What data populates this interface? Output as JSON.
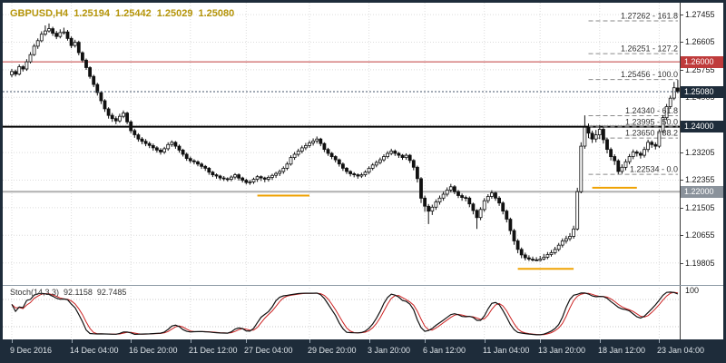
{
  "header": {
    "symbol_period": "GBPUSD,H4",
    "open": "1.25194",
    "high": "1.25442",
    "low": "1.25029",
    "close": "1.25080"
  },
  "colors": {
    "frame": "#1e2c3a",
    "badge_current": "#1e2c3a",
    "badge_red": "#bf3b3b",
    "badge_gray": "#8a929b",
    "orange_marker": "#efa202",
    "grid": "#dcdcdc",
    "fib_line": "#8a8a8a",
    "fib_text": "#333333",
    "candle": "#111111",
    "bull_fill": "#ffffff",
    "bear_fill": "#111111",
    "stoch_main": "#111111",
    "stoch_signal": "#cc2222",
    "quote_text": "#b5950a"
  },
  "indicator": {
    "label": "Stoch(14,3,3)",
    "value_main": "92.1158",
    "value_signal": "92.7485",
    "k_period": 14,
    "slowing": 3,
    "d_period": 3,
    "scale_max_label": "100",
    "levels": [
      20,
      80
    ]
  },
  "price_axis": {
    "ticks": [
      "1.27455",
      "1.26605",
      "1.25755",
      "1.24905",
      "1.24055",
      "1.23205",
      "1.22355",
      "1.21505",
      "1.20655",
      "1.19805"
    ],
    "badges": [
      {
        "text": "1.26000",
        "price": 1.26,
        "bg": "#bf3b3b",
        "name": "hline-1.26"
      },
      {
        "text": "1.25080",
        "price": 1.2508,
        "bg": "#1e2c3a",
        "name": "current-price"
      },
      {
        "text": "1.24000",
        "price": 1.24,
        "bg": "#1e2c3a",
        "name": "hline-1.24"
      },
      {
        "text": "1.22000",
        "price": 1.22,
        "bg": "#8a929b",
        "name": "hline-1.22"
      }
    ]
  },
  "time_axis": {
    "labels": [
      {
        "text": "9 Dec 2016",
        "idx": 0
      },
      {
        "text": "14 Dec 04:00",
        "idx": 16
      },
      {
        "text": "16 Dec 20:00",
        "idx": 32
      },
      {
        "text": "21 Dec 12:00",
        "idx": 48
      },
      {
        "text": "27 Dec 04:00",
        "idx": 63
      },
      {
        "text": "29 Dec 20:00",
        "idx": 80
      },
      {
        "text": "3 Jan 20:00",
        "idx": 96
      },
      {
        "text": "6 Jan 12:00",
        "idx": 111
      },
      {
        "text": "11 Jan 04:00",
        "idx": 127
      },
      {
        "text": "13 Jan 20:00",
        "idx": 142
      },
      {
        "text": "18 Jan 12:00",
        "idx": 158
      },
      {
        "text": "23 Jan 04:00",
        "idx": 174
      }
    ]
  },
  "chart_data": {
    "type": "candlestick",
    "symbol": "GBPUSD",
    "timeframe": "H4",
    "title": "GBPUSD,H4",
    "ohlc_current": {
      "open": 1.25194,
      "high": 1.25442,
      "low": 1.25029,
      "close": 1.2508
    },
    "y_range": [
      1.1932,
      1.2782
    ],
    "grid": true,
    "sr_lines": [
      {
        "price": 1.26,
        "color": "#bf3b3b",
        "width": 1
      },
      {
        "price": 1.24,
        "color": "#000000",
        "width": 2
      },
      {
        "price": 1.22,
        "color": "#b0b0b0",
        "width": 2
      }
    ],
    "fib": {
      "start_idx": 155,
      "levels": [
        {
          "price": 1.27262,
          "label": "1.27262 - 161.8"
        },
        {
          "price": 1.26251,
          "label": "1.26251 - 127.2"
        },
        {
          "price": 1.25456,
          "label": "1.25456 - 100.0"
        },
        {
          "price": 1.2434,
          "label": "1.24340 - 61.8"
        },
        {
          "price": 1.23995,
          "label": "1.23995 - 50.0"
        },
        {
          "price": 1.2365,
          "label": "1.23650 - 38.2"
        },
        {
          "price": 1.22534,
          "label": "1.22534 - 0.0"
        }
      ]
    },
    "support_markers": [
      {
        "price": 1.2188,
        "from": 66,
        "to": 80
      },
      {
        "price": 1.1962,
        "from": 136,
        "to": 151
      },
      {
        "price": 1.2212,
        "from": 156,
        "to": 168
      }
    ],
    "candles": [
      [
        1.256,
        1.2578,
        1.2552,
        1.257
      ],
      [
        1.257,
        1.2576,
        1.2555,
        1.2562
      ],
      [
        1.2562,
        1.2592,
        1.2558,
        1.2585
      ],
      [
        1.2585,
        1.259,
        1.257,
        1.2578
      ],
      [
        1.2578,
        1.2608,
        1.2572,
        1.26
      ],
      [
        1.26,
        1.263,
        1.2595,
        1.2622
      ],
      [
        1.2622,
        1.2655,
        1.2618,
        1.2648
      ],
      [
        1.2648,
        1.2672,
        1.264,
        1.2665
      ],
      [
        1.2665,
        1.2694,
        1.266,
        1.2685
      ],
      [
        1.2685,
        1.2712,
        1.268,
        1.2695
      ],
      [
        1.2695,
        1.2718,
        1.269,
        1.2702
      ],
      [
        1.2702,
        1.2708,
        1.268,
        1.2688
      ],
      [
        1.2688,
        1.2695,
        1.267,
        1.2678
      ],
      [
        1.2678,
        1.27,
        1.2672,
        1.269
      ],
      [
        1.269,
        1.2705,
        1.2684,
        1.2692
      ],
      [
        1.2692,
        1.2698,
        1.2665,
        1.2672
      ],
      [
        1.2672,
        1.2678,
        1.2642,
        1.265
      ],
      [
        1.265,
        1.2668,
        1.2644,
        1.266
      ],
      [
        1.266,
        1.2665,
        1.262,
        1.2628
      ],
      [
        1.2628,
        1.2632,
        1.2598,
        1.2605
      ],
      [
        1.2605,
        1.261,
        1.2575,
        1.2582
      ],
      [
        1.2582,
        1.2586,
        1.2548,
        1.2555
      ],
      [
        1.2555,
        1.256,
        1.2522,
        1.253
      ],
      [
        1.253,
        1.2535,
        1.2496,
        1.2505
      ],
      [
        1.2505,
        1.251,
        1.247,
        1.248
      ],
      [
        1.248,
        1.2485,
        1.2446,
        1.2455
      ],
      [
        1.2455,
        1.246,
        1.2425,
        1.2435
      ],
      [
        1.2435,
        1.2442,
        1.2415,
        1.2425
      ],
      [
        1.2425,
        1.2432,
        1.2408,
        1.2418
      ],
      [
        1.2418,
        1.244,
        1.2412,
        1.2432
      ],
      [
        1.2432,
        1.245,
        1.2426,
        1.2442
      ],
      [
        1.2442,
        1.2446,
        1.2408,
        1.2415
      ],
      [
        1.2415,
        1.242,
        1.238,
        1.2388
      ],
      [
        1.2388,
        1.2394,
        1.2366,
        1.2375
      ],
      [
        1.2375,
        1.238,
        1.2354,
        1.2362
      ],
      [
        1.2362,
        1.2368,
        1.2346,
        1.2355
      ],
      [
        1.2355,
        1.2362,
        1.234,
        1.2348
      ],
      [
        1.2348,
        1.2354,
        1.2334,
        1.2342
      ],
      [
        1.2342,
        1.2348,
        1.2326,
        1.2335
      ],
      [
        1.2335,
        1.234,
        1.232,
        1.2328
      ],
      [
        1.2328,
        1.2334,
        1.2314,
        1.2322
      ],
      [
        1.2322,
        1.2338,
        1.2316,
        1.2332
      ],
      [
        1.2332,
        1.2352,
        1.2326,
        1.2345
      ],
      [
        1.2345,
        1.2358,
        1.2338,
        1.2352
      ],
      [
        1.2352,
        1.2356,
        1.2332,
        1.234
      ],
      [
        1.234,
        1.2345,
        1.232,
        1.2328
      ],
      [
        1.2328,
        1.2332,
        1.2308,
        1.2315
      ],
      [
        1.2315,
        1.232,
        1.2295,
        1.2302
      ],
      [
        1.2302,
        1.2308,
        1.2288,
        1.2295
      ],
      [
        1.2295,
        1.23,
        1.2284,
        1.2292
      ],
      [
        1.2292,
        1.2296,
        1.2278,
        1.2285
      ],
      [
        1.2285,
        1.229,
        1.227,
        1.2278
      ],
      [
        1.2278,
        1.2282,
        1.2264,
        1.2272
      ],
      [
        1.2272,
        1.2276,
        1.2252,
        1.226
      ],
      [
        1.226,
        1.2264,
        1.2245,
        1.2252
      ],
      [
        1.2252,
        1.2256,
        1.224,
        1.2248
      ],
      [
        1.2248,
        1.2252,
        1.2235,
        1.2242
      ],
      [
        1.2242,
        1.2248,
        1.2233,
        1.224
      ],
      [
        1.224,
        1.2244,
        1.2231,
        1.2238
      ],
      [
        1.2238,
        1.225,
        1.2232,
        1.2245
      ],
      [
        1.2245,
        1.2257,
        1.2238,
        1.2252
      ],
      [
        1.2252,
        1.2256,
        1.2234,
        1.2242
      ],
      [
        1.2242,
        1.2246,
        1.2228,
        1.2235
      ],
      [
        1.2235,
        1.224,
        1.2222,
        1.2228
      ],
      [
        1.2228,
        1.2236,
        1.2221,
        1.223
      ],
      [
        1.223,
        1.2243,
        1.2224,
        1.2238
      ],
      [
        1.2238,
        1.2251,
        1.223,
        1.2246
      ],
      [
        1.2246,
        1.225,
        1.2233,
        1.2242
      ],
      [
        1.2242,
        1.2246,
        1.2229,
        1.2238
      ],
      [
        1.2238,
        1.225,
        1.2231,
        1.2244
      ],
      [
        1.2244,
        1.2255,
        1.2236,
        1.225
      ],
      [
        1.225,
        1.2261,
        1.2242,
        1.2256
      ],
      [
        1.2256,
        1.2268,
        1.2248,
        1.2262
      ],
      [
        1.2262,
        1.2278,
        1.2255,
        1.2272
      ],
      [
        1.2272,
        1.2292,
        1.2266,
        1.2285
      ],
      [
        1.2285,
        1.2312,
        1.228,
        1.2305
      ],
      [
        1.2305,
        1.2322,
        1.2298,
        1.2315
      ],
      [
        1.2315,
        1.2332,
        1.2308,
        1.2325
      ],
      [
        1.2325,
        1.2342,
        1.2318,
        1.2335
      ],
      [
        1.2335,
        1.235,
        1.2328,
        1.2342
      ],
      [
        1.2342,
        1.2358,
        1.2335,
        1.235
      ],
      [
        1.235,
        1.2364,
        1.2342,
        1.2356
      ],
      [
        1.2356,
        1.237,
        1.2348,
        1.2362
      ],
      [
        1.2362,
        1.2366,
        1.234,
        1.2348
      ],
      [
        1.2348,
        1.2352,
        1.2322,
        1.233
      ],
      [
        1.233,
        1.2335,
        1.231,
        1.2318
      ],
      [
        1.2318,
        1.2322,
        1.23,
        1.2308
      ],
      [
        1.2308,
        1.2312,
        1.229,
        1.2298
      ],
      [
        1.2298,
        1.2302,
        1.2277,
        1.2285
      ],
      [
        1.2285,
        1.229,
        1.2264,
        1.2272
      ],
      [
        1.2272,
        1.2276,
        1.2254,
        1.2262
      ],
      [
        1.2262,
        1.2266,
        1.2247,
        1.2255
      ],
      [
        1.2255,
        1.226,
        1.2244,
        1.2252
      ],
      [
        1.2252,
        1.2256,
        1.224,
        1.2248
      ],
      [
        1.2248,
        1.2258,
        1.2242,
        1.2252
      ],
      [
        1.2252,
        1.2266,
        1.2246,
        1.226
      ],
      [
        1.226,
        1.2278,
        1.2254,
        1.2272
      ],
      [
        1.2272,
        1.2288,
        1.2266,
        1.2282
      ],
      [
        1.2282,
        1.2296,
        1.2275,
        1.229
      ],
      [
        1.229,
        1.2305,
        1.2284,
        1.2298
      ],
      [
        1.2298,
        1.2315,
        1.2292,
        1.2308
      ],
      [
        1.2308,
        1.2325,
        1.2302,
        1.2318
      ],
      [
        1.2318,
        1.2332,
        1.2312,
        1.2325
      ],
      [
        1.2325,
        1.233,
        1.231,
        1.2318
      ],
      [
        1.2318,
        1.2322,
        1.2304,
        1.2312
      ],
      [
        1.2312,
        1.2316,
        1.2298,
        1.2305
      ],
      [
        1.2305,
        1.2318,
        1.2298,
        1.2312
      ],
      [
        1.2312,
        1.2316,
        1.2288,
        1.2296
      ],
      [
        1.2296,
        1.23,
        1.2266,
        1.2275
      ],
      [
        1.2275,
        1.228,
        1.2228,
        1.224
      ],
      [
        1.224,
        1.2245,
        1.2165,
        1.218
      ],
      [
        1.218,
        1.2188,
        1.2138,
        1.2155
      ],
      [
        1.2155,
        1.2162,
        1.21,
        1.214
      ],
      [
        1.214,
        1.216,
        1.2128,
        1.2152
      ],
      [
        1.2152,
        1.2176,
        1.2144,
        1.2168
      ],
      [
        1.2168,
        1.2188,
        1.216,
        1.218
      ],
      [
        1.218,
        1.22,
        1.2172,
        1.2192
      ],
      [
        1.2192,
        1.2213,
        1.2185,
        1.2205
      ],
      [
        1.2205,
        1.2224,
        1.2198,
        1.2215
      ],
      [
        1.2215,
        1.222,
        1.2192,
        1.22
      ],
      [
        1.22,
        1.2205,
        1.218,
        1.2188
      ],
      [
        1.2188,
        1.2194,
        1.2172,
        1.2182
      ],
      [
        1.2182,
        1.2188,
        1.217,
        1.218
      ],
      [
        1.218,
        1.2185,
        1.2152,
        1.2162
      ],
      [
        1.2162,
        1.2166,
        1.213,
        1.2142
      ],
      [
        1.2142,
        1.2146,
        1.2085,
        1.212
      ],
      [
        1.212,
        1.2152,
        1.2112,
        1.2145
      ],
      [
        1.2145,
        1.218,
        1.2138,
        1.2172
      ],
      [
        1.2172,
        1.2192,
        1.2164,
        1.2185
      ],
      [
        1.2185,
        1.2204,
        1.2178,
        1.2196
      ],
      [
        1.2196,
        1.22,
        1.2172,
        1.218
      ],
      [
        1.218,
        1.2186,
        1.2156,
        1.2165
      ],
      [
        1.2165,
        1.217,
        1.213,
        1.214
      ],
      [
        1.214,
        1.2145,
        1.2105,
        1.2115
      ],
      [
        1.2115,
        1.212,
        1.2068,
        1.208
      ],
      [
        1.208,
        1.2085,
        1.2036,
        1.2048
      ],
      [
        1.2048,
        1.2054,
        1.201,
        1.2022
      ],
      [
        1.2022,
        1.2028,
        1.1995,
        1.2005
      ],
      [
        1.2005,
        1.2012,
        1.1988,
        1.1996
      ],
      [
        1.1996,
        1.2004,
        1.1986,
        1.1992
      ],
      [
        1.1992,
        1.2,
        1.1985,
        1.199
      ],
      [
        1.199,
        1.1998,
        1.1986,
        1.1988
      ],
      [
        1.1988,
        1.2002,
        1.1985,
        1.1992
      ],
      [
        1.1992,
        1.2008,
        1.1988,
        1.1998
      ],
      [
        1.1998,
        1.2014,
        1.1992,
        1.2006
      ],
      [
        1.2006,
        1.202,
        1.2,
        1.2012
      ],
      [
        1.2012,
        1.203,
        1.2006,
        1.2022
      ],
      [
        1.2022,
        1.2042,
        1.2016,
        1.2035
      ],
      [
        1.2035,
        1.2056,
        1.2028,
        1.2048
      ],
      [
        1.2048,
        1.2064,
        1.204,
        1.2055
      ],
      [
        1.2055,
        1.2072,
        1.2048,
        1.2062
      ],
      [
        1.2062,
        1.2095,
        1.2055,
        1.2085
      ],
      [
        1.2085,
        1.2212,
        1.208,
        1.22
      ],
      [
        1.22,
        1.2352,
        1.2195,
        1.234
      ],
      [
        1.234,
        1.2435,
        1.2332,
        1.2398
      ],
      [
        1.2398,
        1.241,
        1.2365,
        1.238
      ],
      [
        1.238,
        1.2388,
        1.235,
        1.2362
      ],
      [
        1.2362,
        1.239,
        1.2352,
        1.2375
      ],
      [
        1.2375,
        1.2405,
        1.2362,
        1.2392
      ],
      [
        1.2392,
        1.2398,
        1.2348,
        1.236
      ],
      [
        1.236,
        1.2366,
        1.2318,
        1.233
      ],
      [
        1.233,
        1.2336,
        1.2296,
        1.2308
      ],
      [
        1.2308,
        1.2315,
        1.2282,
        1.2295
      ],
      [
        1.2295,
        1.23,
        1.2254,
        1.2262
      ],
      [
        1.2262,
        1.2284,
        1.2255,
        1.2275
      ],
      [
        1.2275,
        1.23,
        1.2266,
        1.2292
      ],
      [
        1.2292,
        1.2316,
        1.2284,
        1.2308
      ],
      [
        1.2308,
        1.233,
        1.23,
        1.2322
      ],
      [
        1.2322,
        1.2328,
        1.2308,
        1.2318
      ],
      [
        1.2318,
        1.2324,
        1.2302,
        1.2312
      ],
      [
        1.2312,
        1.2338,
        1.2305,
        1.233
      ],
      [
        1.233,
        1.236,
        1.2322,
        1.2352
      ],
      [
        1.2352,
        1.2358,
        1.2335,
        1.2345
      ],
      [
        1.2345,
        1.2352,
        1.233,
        1.234
      ],
      [
        1.234,
        1.2392,
        1.2334,
        1.2385
      ],
      [
        1.2385,
        1.2436,
        1.2378,
        1.2428
      ],
      [
        1.2428,
        1.247,
        1.242,
        1.2462
      ],
      [
        1.2462,
        1.2496,
        1.2455,
        1.2488
      ],
      [
        1.2488,
        1.2538,
        1.2482,
        1.252
      ],
      [
        1.25194,
        1.25442,
        1.25029,
        1.2508
      ]
    ]
  }
}
